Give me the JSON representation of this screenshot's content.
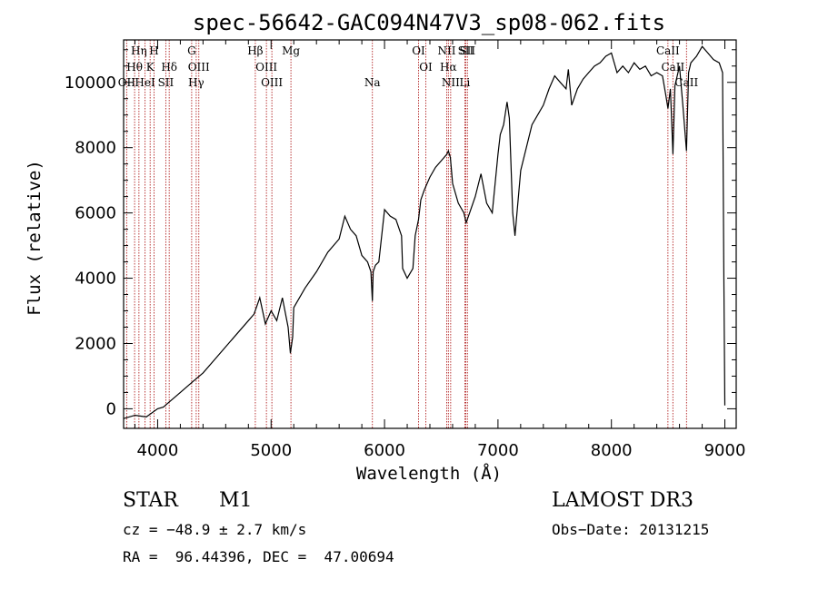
{
  "chart_data": {
    "type": "line",
    "title": "spec-56642-GAC094N47V3_sp08-062.fits",
    "xlabel": "Wavelength (Å)",
    "ylabel": "Flux (relative)",
    "xlim": [
      3700,
      9100
    ],
    "ylim": [
      -600,
      11300
    ],
    "xticks": [
      4000,
      5000,
      6000,
      7000,
      8000,
      9000
    ],
    "yticks": [
      0,
      2000,
      4000,
      6000,
      8000,
      10000
    ],
    "grid": false,
    "series": [
      {
        "name": "flux",
        "x": [
          3700,
          3800,
          3900,
          4000,
          4050,
          4100,
          4200,
          4300,
          4400,
          4500,
          4600,
          4700,
          4800,
          4850,
          4880,
          4900,
          4950,
          5000,
          5050,
          5100,
          5150,
          5170,
          5190,
          5200,
          5300,
          5400,
          5500,
          5600,
          5650,
          5700,
          5750,
          5800,
          5850,
          5880,
          5893,
          5900,
          5920,
          5950,
          6000,
          6050,
          6100,
          6150,
          6160,
          6200,
          6250,
          6270,
          6300,
          6320,
          6350,
          6400,
          6450,
          6500,
          6550,
          6563,
          6580,
          6600,
          6650,
          6700,
          6720,
          6750,
          6800,
          6850,
          6900,
          6950,
          7000,
          7020,
          7050,
          7080,
          7100,
          7130,
          7150,
          7200,
          7300,
          7400,
          7450,
          7500,
          7550,
          7600,
          7620,
          7650,
          7700,
          7750,
          7800,
          7850,
          7900,
          7950,
          8000,
          8050,
          8100,
          8150,
          8200,
          8250,
          8300,
          8350,
          8400,
          8450,
          8480,
          8498,
          8520,
          8542,
          8560,
          8600,
          8630,
          8662,
          8680,
          8700,
          8750,
          8800,
          8850,
          8900,
          8950,
          8980,
          8990,
          9000
        ],
        "y": [
          -300,
          -200,
          -250,
          0,
          50,
          200,
          500,
          800,
          1100,
          1500,
          1900,
          2300,
          2700,
          2900,
          3200,
          3400,
          2600,
          3000,
          2700,
          3400,
          2500,
          1700,
          2200,
          3100,
          3700,
          4200,
          4800,
          5200,
          5900,
          5500,
          5300,
          4700,
          4500,
          4200,
          3300,
          4200,
          4400,
          4500,
          6100,
          5900,
          5800,
          5300,
          4300,
          4000,
          4300,
          5300,
          5800,
          6400,
          6700,
          7100,
          7400,
          7600,
          7800,
          7900,
          7700,
          6900,
          6300,
          6000,
          5700,
          6000,
          6500,
          7200,
          6300,
          6000,
          7800,
          8400,
          8700,
          9400,
          8900,
          6000,
          5300,
          7300,
          8700,
          9300,
          9800,
          10200,
          10000,
          9800,
          10400,
          9300,
          9800,
          10100,
          10300,
          10500,
          10600,
          10800,
          10900,
          10300,
          10500,
          10300,
          10600,
          10400,
          10500,
          10200,
          10300,
          10200,
          9600,
          9200,
          9800,
          7800,
          9900,
          10500,
          9300,
          7900,
          10300,
          10600,
          10800,
          11100,
          10900,
          10700,
          10600,
          10300,
          4500,
          100
        ]
      }
    ],
    "spectral_lines": [
      {
        "name": "Hη",
        "wavelength": 3835
      },
      {
        "name": "H",
        "wavelength": 3968
      },
      {
        "name": "Hθ",
        "wavelength": 3797
      },
      {
        "name": "K",
        "wavelength": 3934
      },
      {
        "name": "OII",
        "wavelength": 3727
      },
      {
        "name": "HeI",
        "wavelength": 3889
      },
      {
        "name": "Hδ",
        "wavelength": 4102
      },
      {
        "name": "SII",
        "wavelength": 4072
      },
      {
        "name": "G",
        "wavelength": 4300
      },
      {
        "name": "OIII",
        "wavelength": 4363
      },
      {
        "name": "Hγ",
        "wavelength": 4340
      },
      {
        "name": "Hβ",
        "wavelength": 4861
      },
      {
        "name": "OIII",
        "wavelength": 4959
      },
      {
        "name": "OIII",
        "wavelength": 5007
      },
      {
        "name": "Mg",
        "wavelength": 5175
      },
      {
        "name": "Na",
        "wavelength": 5893
      },
      {
        "name": "OI",
        "wavelength": 6300
      },
      {
        "name": "OI",
        "wavelength": 6364
      },
      {
        "name": "NII",
        "wavelength": 6548
      },
      {
        "name": "Hα",
        "wavelength": 6563
      },
      {
        "name": "NII",
        "wavelength": 6583
      },
      {
        "name": "SII",
        "wavelength": 6716
      },
      {
        "name": "SII",
        "wavelength": 6731
      },
      {
        "name": "Li",
        "wavelength": 6708
      },
      {
        "name": "CaII",
        "wavelength": 8498
      },
      {
        "name": "CaII",
        "wavelength": 8542
      },
      {
        "name": "CaII",
        "wavelength": 8662
      }
    ]
  },
  "info": {
    "object_class": "STAR",
    "subclass": "M1",
    "survey": "LAMOST DR3",
    "cz": "cz = −48.9 ± 2.7 km/s",
    "obs_date": "Obs−Date: 20131215",
    "coords": "RA =  96.44396, DEC =  47.00694"
  }
}
